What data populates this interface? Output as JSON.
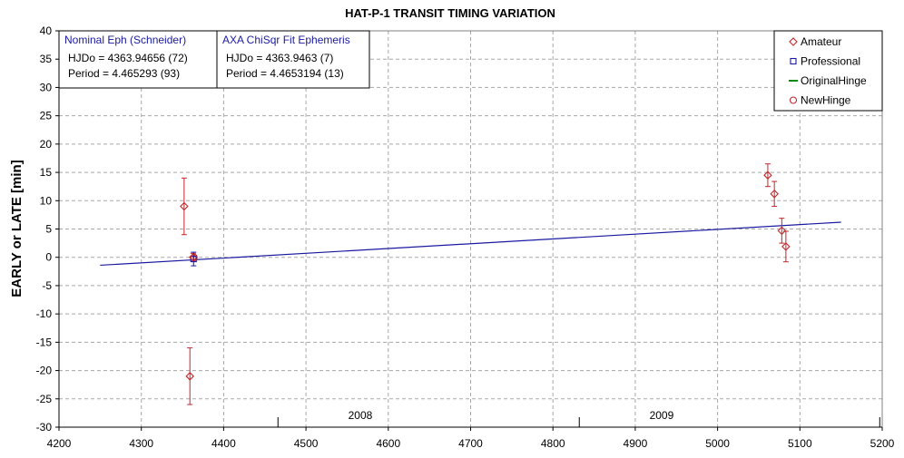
{
  "chart_data": {
    "type": "scatter",
    "title": "HAT-P-1 TRANSIT TIMING VARIATION",
    "xlabel": "",
    "ylabel": "EARLY or LATE [min]",
    "xlim": [
      4200,
      5200
    ],
    "ylim": [
      -30,
      40
    ],
    "x_ticks": [
      4200,
      4300,
      4400,
      4500,
      4600,
      4700,
      4800,
      4900,
      5000,
      5100,
      5200
    ],
    "y_ticks": [
      -30,
      -25,
      -20,
      -15,
      -10,
      -5,
      0,
      5,
      10,
      15,
      20,
      25,
      30,
      35,
      40
    ],
    "grid": true,
    "legend_placement": "top-right",
    "series": [
      {
        "name": "Amateur",
        "marker": "diamond",
        "color": "#c0282c",
        "points": [
          {
            "x": 4352,
            "y": 9,
            "err": 5
          },
          {
            "x": 4359,
            "y": -21,
            "err": 5
          },
          {
            "x": 4363,
            "y": 0,
            "err": 0.7
          },
          {
            "x": 5061,
            "y": 14.5,
            "err": 2
          },
          {
            "x": 5069,
            "y": 11.2,
            "err": 2.2
          },
          {
            "x": 5078,
            "y": 4.7,
            "err": 2.2
          },
          {
            "x": 5083,
            "y": 1.9,
            "err": 2.7
          }
        ]
      },
      {
        "name": "Professional",
        "marker": "square",
        "color": "#1a1aa0",
        "points": [
          {
            "x": 4363.5,
            "y": -0.3,
            "err": 1.2
          }
        ]
      },
      {
        "name": "OriginalHinge",
        "marker": "line",
        "color": "#0a8a0a",
        "points": []
      },
      {
        "name": "NewHinge",
        "marker": "circle",
        "color": "#c0282c",
        "points": [
          {
            "x": 4364,
            "y": 0
          }
        ]
      }
    ],
    "fit_line": {
      "color": "#1a1aa0",
      "x": [
        4250,
        5150
      ],
      "y": [
        -1.4,
        6.2
      ]
    },
    "years": [
      {
        "label": "2008",
        "x": 4566,
        "boundary": 4466
      },
      {
        "label": "2009",
        "x": 4932,
        "boundary": 4832
      }
    ],
    "year_end_boundary": 5197,
    "info_boxes": [
      {
        "head": "Nominal Eph (Schneider)",
        "lines": [
          "HJDo = 4363.94656 (72)",
          "Period = 4.465293 (93)"
        ]
      },
      {
        "head": "AXA ChiSqr Fit Ephemeris",
        "lines": [
          "HJDo = 4363.9463 (7)",
          "Period = 4.4653194 (13)"
        ]
      }
    ]
  }
}
